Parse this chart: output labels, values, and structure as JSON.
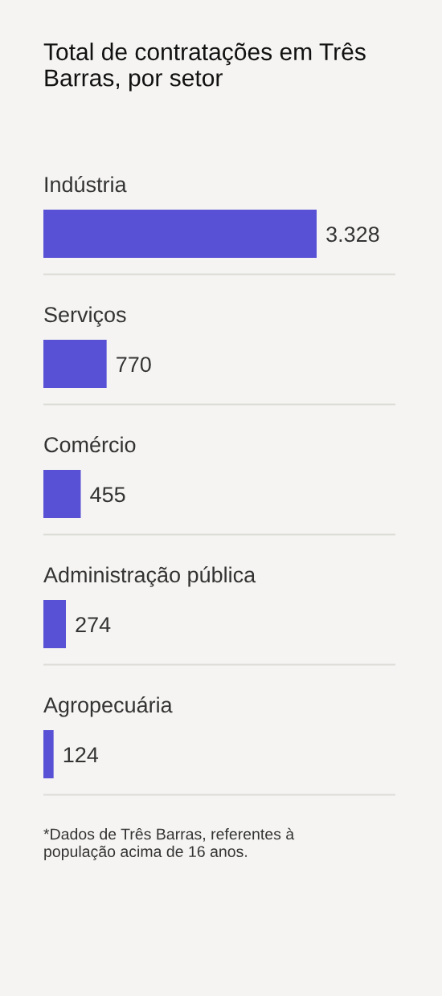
{
  "chart_data": {
    "type": "bar",
    "orientation": "horizontal",
    "title": "Total de contratações em Três Barras, por setor",
    "categories": [
      "Indústria",
      "Serviços",
      "Comércio",
      "Administração pública",
      "Agropecuária"
    ],
    "values": [
      3328,
      770,
      455,
      274,
      124
    ],
    "value_labels": [
      "3.328",
      "770",
      "455",
      "274",
      "124"
    ],
    "color": "#5851d6",
    "annotations": [
      "*Dados de Três Barras, referentes à população acima de 16 anos."
    ]
  }
}
